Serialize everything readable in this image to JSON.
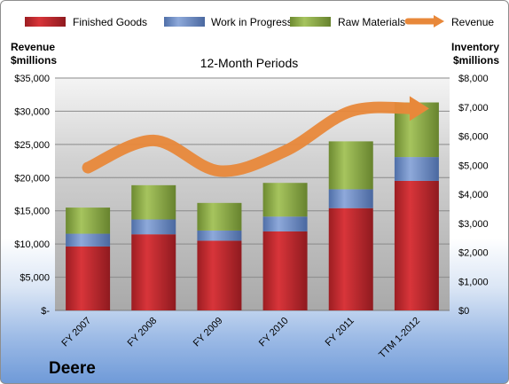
{
  "company": "Deere",
  "chart_data": {
    "type": "bar",
    "stacked": true,
    "title": "12-Month Periods",
    "categories": [
      "FY 2007",
      "FY 2008",
      "FY 2009",
      "FY 2010",
      "FY 2011",
      "TTM 1-2012"
    ],
    "series": [
      {
        "name": "Finished Goods",
        "axis": "right",
        "color": "#c0282d",
        "values": [
          2200,
          2620,
          2400,
          2720,
          3520,
          4460
        ]
      },
      {
        "name": "Work in Progress",
        "axis": "right",
        "color": "#6b8cc7",
        "values": [
          440,
          510,
          350,
          510,
          650,
          820
        ]
      },
      {
        "name": "Raw Materials",
        "axis": "right",
        "color": "#8fac4a",
        "values": [
          900,
          1180,
          950,
          1160,
          1650,
          1880
        ]
      },
      {
        "name": "Revenue",
        "type": "line",
        "axis": "left",
        "color": "#e8883a",
        "values": [
          21500,
          25600,
          21000,
          24000,
          30000,
          30400
        ]
      }
    ],
    "left_axis": {
      "label_line1": "Revenue",
      "label_line2": "$millions",
      "ylim": [
        0,
        35000
      ],
      "ticks": [
        0,
        5000,
        10000,
        15000,
        20000,
        25000,
        30000,
        35000
      ],
      "tick_labels": [
        "$-",
        "$5,000",
        "$10,000",
        "$15,000",
        "$20,000",
        "$25,000",
        "$30,000",
        "$35,000"
      ]
    },
    "right_axis": {
      "label_line1": "Inventory",
      "label_line2": "$millions",
      "ylim": [
        0,
        8000
      ],
      "ticks": [
        0,
        1000,
        2000,
        3000,
        4000,
        5000,
        6000,
        7000,
        8000
      ],
      "tick_labels": [
        "$0",
        "$1,000",
        "$2,000",
        "$3,000",
        "$4,000",
        "$5,000",
        "$6,000",
        "$7,000",
        "$8,000"
      ]
    },
    "grid": true,
    "legend_position": "top"
  }
}
